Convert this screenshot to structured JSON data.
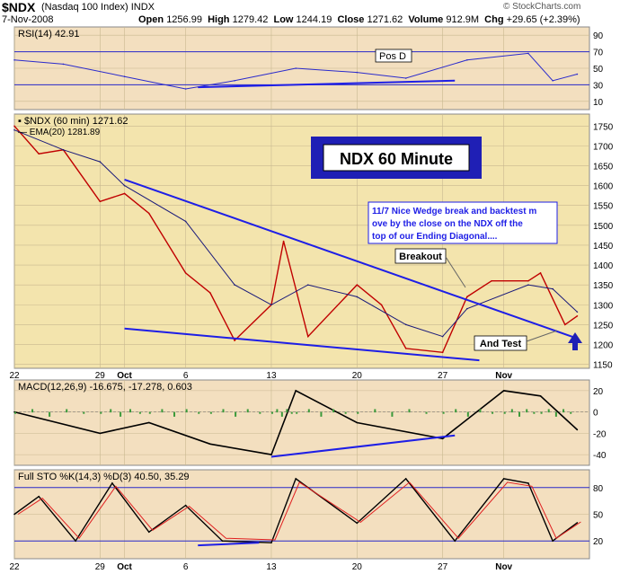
{
  "header": {
    "symbol": "$NDX",
    "name": "(Nasdaq 100 Index)",
    "exchange": "INDX",
    "date": "7-Nov-2008",
    "open_label": "Open",
    "open": "1256.99",
    "high_label": "High",
    "high": "1279.42",
    "low_label": "Low",
    "low": "1244.19",
    "close_label": "Close",
    "close": "1271.62",
    "volume_label": "Volume",
    "volume": "912.9M",
    "chg_label": "Chg",
    "chg": "+29.65 (+2.39%)",
    "watermark": "© StockCharts.com"
  },
  "colors": {
    "price_bg": "#f3e4ad",
    "panel_bg": "#f3dfbf",
    "trendline": "#1e1ee6",
    "price": "#c00000",
    "ema": "#1a1a7a",
    "title_box": "#1f1fb5",
    "macd_hist": "#3a9a3a",
    "sto_k": "#000000",
    "sto_d": "#e02020"
  },
  "chart_data": [
    {
      "type": "line",
      "panel": "rsi",
      "legend": "RSI(14) 42.91",
      "ylim": [
        0,
        100
      ],
      "yticks": [
        10,
        30,
        50,
        70,
        90
      ],
      "guides": [
        30,
        70
      ],
      "annotation": "Pos D",
      "trendline": [
        [
          "Oct 7",
          27
        ],
        [
          "Oct 28",
          35
        ]
      ],
      "series": [
        {
          "name": "RSI(14)",
          "x": [
            "Sep 22",
            "Sep 26",
            "Oct 1",
            "Oct 6",
            "Oct 10",
            "Oct 15",
            "Oct 20",
            "Oct 24",
            "Oct 29",
            "Nov 3",
            "Nov 5",
            "Nov 7"
          ],
          "values": [
            60,
            55,
            40,
            25,
            35,
            50,
            45,
            38,
            60,
            68,
            35,
            42.91
          ]
        }
      ]
    },
    {
      "type": "line",
      "panel": "price",
      "legend": "$NDX (60 min) 1271.62",
      "legend2": "EMA(20) 1281.89",
      "title": "NDX 60 Minute",
      "ylim": [
        1140,
        1780
      ],
      "yticks": [
        1150,
        1200,
        1250,
        1300,
        1350,
        1400,
        1450,
        1500,
        1550,
        1600,
        1650,
        1700,
        1750
      ],
      "note": "11/7  Nice Wedge break and backtest move by the close on the NDX off the top of our Ending Diagonal....",
      "labels": [
        "Breakout",
        "And Test"
      ],
      "upper_trendline": [
        [
          "Oct 1",
          1615
        ],
        [
          "Nov 7",
          1215
        ]
      ],
      "lower_trendline": [
        [
          "Oct 1",
          1240
        ],
        [
          "Oct 30",
          1160
        ]
      ],
      "series": [
        {
          "name": "$NDX",
          "x": [
            "Sep 22",
            "Sep 24",
            "Sep 26",
            "Sep 29",
            "Oct 1",
            "Oct 3",
            "Oct 6",
            "Oct 8",
            "Oct 10",
            "Oct 13",
            "Oct 14",
            "Oct 16",
            "Oct 20",
            "Oct 22",
            "Oct 24",
            "Oct 27",
            "Oct 29",
            "Oct 31",
            "Nov 3",
            "Nov 4",
            "Nov 6",
            "Nov 7"
          ],
          "values": [
            1750,
            1680,
            1690,
            1560,
            1580,
            1530,
            1380,
            1330,
            1210,
            1300,
            1460,
            1220,
            1350,
            1300,
            1190,
            1180,
            1320,
            1360,
            1360,
            1380,
            1250,
            1271.62
          ]
        },
        {
          "name": "EMA(20)",
          "x": [
            "Sep 22",
            "Sep 26",
            "Sep 29",
            "Oct 1",
            "Oct 6",
            "Oct 10",
            "Oct 13",
            "Oct 16",
            "Oct 20",
            "Oct 24",
            "Oct 27",
            "Oct 29",
            "Nov 3",
            "Nov 5",
            "Nov 7"
          ],
          "values": [
            1740,
            1690,
            1660,
            1600,
            1510,
            1350,
            1300,
            1350,
            1320,
            1250,
            1220,
            1290,
            1350,
            1340,
            1281.89
          ]
        }
      ]
    },
    {
      "type": "line",
      "panel": "macd",
      "legend": "MACD(12,26,9) -16.675, -17.278, 0.603",
      "ylim": [
        -50,
        30
      ],
      "yticks": [
        -40,
        -20,
        0,
        20
      ],
      "trendline": [
        [
          "Oct 13",
          -42
        ],
        [
          "Oct 28",
          -22
        ]
      ],
      "series": [
        {
          "name": "MACD",
          "x": [
            "Sep 22",
            "Sep 29",
            "Oct 3",
            "Oct 8",
            "Oct 13",
            "Oct 15",
            "Oct 20",
            "Oct 27",
            "Nov 1",
            "Nov 4",
            "Nov 7"
          ],
          "values": [
            0,
            -20,
            -10,
            -30,
            -40,
            20,
            -10,
            -25,
            20,
            15,
            -16.675
          ]
        }
      ]
    },
    {
      "type": "line",
      "panel": "stochastic",
      "legend": "Full STO %K(14,3) %D(3) 40.50, 35.29",
      "ylim": [
        0,
        100
      ],
      "yticks": [
        20,
        50,
        80
      ],
      "guides": [
        20,
        80
      ],
      "trendline": [
        [
          "Oct 7",
          15
        ],
        [
          "Oct 12",
          18
        ]
      ],
      "series": [
        {
          "name": "%K",
          "x": [
            "Sep 22",
            "Sep 24",
            "Sep 27",
            "Sep 30",
            "Oct 3",
            "Oct 6",
            "Oct 9",
            "Oct 13",
            "Oct 15",
            "Oct 20",
            "Oct 24",
            "Oct 28",
            "Nov 1",
            "Nov 3",
            "Nov 5",
            "Nov 7"
          ],
          "values": [
            50,
            70,
            20,
            85,
            30,
            60,
            20,
            18,
            90,
            40,
            90,
            20,
            90,
            85,
            20,
            40.5
          ]
        }
      ]
    }
  ],
  "xaxis": {
    "ticks": [
      "22",
      "29",
      "Oct",
      "6",
      "13",
      "20",
      "27",
      "Nov"
    ]
  }
}
